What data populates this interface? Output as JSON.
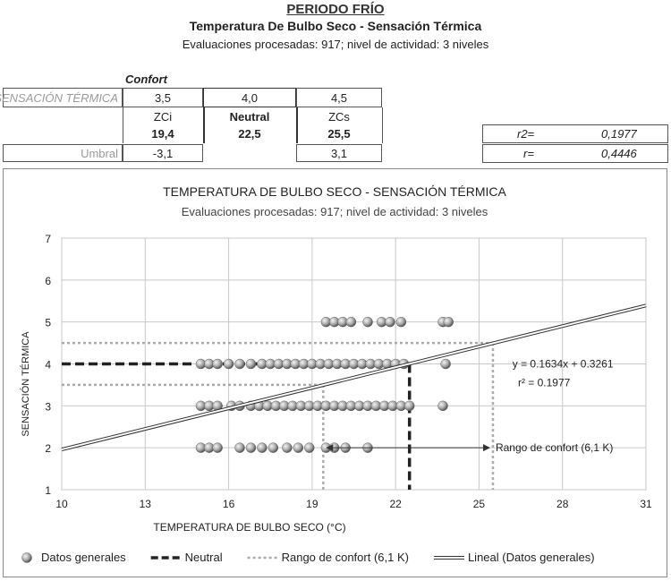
{
  "header": {
    "period": "PERIODO FRÍO",
    "title": "Temperatura De Bulbo Seco - Sensación Térmica",
    "subtitle": "Evaluaciones procesadas: 917; nivel de actividad: 3 niveles"
  },
  "summary": {
    "confort_label": "Confort",
    "sensacion_label": "SENSACIÓN TÉRMICA",
    "sensacion_values": [
      "3,5",
      "4,0",
      "4,5"
    ],
    "zone_labels": [
      "ZCi",
      "Neutral",
      "ZCs"
    ],
    "zone_temps": [
      "19,4",
      "22,5",
      "25,5"
    ],
    "umbral_label": "Umbral",
    "umbral_values": [
      "-3,1",
      "3,1"
    ],
    "r2_label": "r2=",
    "r2_value": "0,1977",
    "r_label": "r=",
    "r_value": "0,4446"
  },
  "chart_data": {
    "type": "scatter",
    "title": "TEMPERATURA DE BULBO SECO - SENSACIÓN TÉRMICA",
    "subtitle": "Evaluaciones procesadas: 917; nivel de actividad: 3 niveles",
    "xlabel": "TEMPERATURA DE BULBO SECO  (°C)",
    "ylabel": "SENSACIÓN TÉRMICA",
    "xlim": [
      10,
      31
    ],
    "ylim": [
      1,
      7
    ],
    "xticks": [
      10,
      13,
      16,
      19,
      22,
      25,
      28,
      31
    ],
    "yticks": [
      1,
      2,
      3,
      4,
      5,
      6,
      7
    ],
    "grid": true,
    "legend_position": "bottom",
    "series": [
      {
        "name": "Datos generales",
        "kind": "points",
        "points": [
          [
            15.0,
            2
          ],
          [
            15.3,
            2
          ],
          [
            15.6,
            2
          ],
          [
            16.4,
            2
          ],
          [
            16.8,
            2
          ],
          [
            17.2,
            2
          ],
          [
            17.6,
            2
          ],
          [
            18.1,
            2
          ],
          [
            18.5,
            2
          ],
          [
            18.9,
            2
          ],
          [
            19.5,
            2
          ],
          [
            19.8,
            2
          ],
          [
            20.2,
            2
          ],
          [
            21.0,
            2
          ],
          [
            15.0,
            3
          ],
          [
            15.3,
            3
          ],
          [
            15.6,
            3
          ],
          [
            16.1,
            3
          ],
          [
            16.4,
            3
          ],
          [
            16.8,
            3
          ],
          [
            17.1,
            3
          ],
          [
            17.4,
            3
          ],
          [
            17.7,
            3
          ],
          [
            18.0,
            3
          ],
          [
            18.3,
            3
          ],
          [
            18.6,
            3
          ],
          [
            18.9,
            3
          ],
          [
            19.2,
            3
          ],
          [
            19.5,
            3
          ],
          [
            19.8,
            3
          ],
          [
            20.1,
            3
          ],
          [
            20.4,
            3
          ],
          [
            20.7,
            3
          ],
          [
            21.0,
            3
          ],
          [
            21.3,
            3
          ],
          [
            21.6,
            3
          ],
          [
            21.9,
            3
          ],
          [
            22.2,
            3
          ],
          [
            22.5,
            3
          ],
          [
            23.7,
            3
          ],
          [
            15.0,
            4
          ],
          [
            15.3,
            4
          ],
          [
            15.6,
            4
          ],
          [
            16.0,
            4
          ],
          [
            16.4,
            4
          ],
          [
            16.8,
            4
          ],
          [
            17.2,
            4
          ],
          [
            17.5,
            4
          ],
          [
            17.8,
            4
          ],
          [
            18.1,
            4
          ],
          [
            18.4,
            4
          ],
          [
            18.7,
            4
          ],
          [
            19.0,
            4
          ],
          [
            19.3,
            4
          ],
          [
            19.6,
            4
          ],
          [
            19.9,
            4
          ],
          [
            20.2,
            4
          ],
          [
            20.5,
            4
          ],
          [
            20.8,
            4
          ],
          [
            21.1,
            4
          ],
          [
            21.4,
            4
          ],
          [
            21.7,
            4
          ],
          [
            22.0,
            4
          ],
          [
            22.3,
            4
          ],
          [
            23.8,
            4
          ],
          [
            19.5,
            5
          ],
          [
            19.8,
            5
          ],
          [
            20.1,
            5
          ],
          [
            20.4,
            5
          ],
          [
            21.0,
            5
          ],
          [
            21.5,
            5
          ],
          [
            21.8,
            5
          ],
          [
            22.2,
            5
          ],
          [
            23.7,
            5
          ],
          [
            23.9,
            5
          ]
        ]
      },
      {
        "name": "Neutral",
        "kind": "dashed",
        "segments": [
          [
            [
              10,
              4
            ],
            [
              22.5,
              4
            ]
          ],
          [
            [
              22.5,
              4
            ],
            [
              22.5,
              1
            ]
          ]
        ]
      },
      {
        "name": "Rango de confort (6,1 K)",
        "kind": "dotted",
        "segments": [
          [
            [
              10,
              4.5
            ],
            [
              25.5,
              4.5
            ]
          ],
          [
            [
              25.5,
              4.5
            ],
            [
              25.5,
              1
            ]
          ],
          [
            [
              10,
              3.5
            ],
            [
              19.4,
              3.5
            ]
          ],
          [
            [
              19.4,
              3.5
            ],
            [
              19.4,
              1
            ]
          ]
        ]
      },
      {
        "name": "Lineal (Datos generales)",
        "kind": "trend",
        "slope": 0.1634,
        "intercept": 0.3261
      }
    ],
    "annotations": {
      "equation": "y = 0.1634x + 0.3261",
      "r2_text": "r² = 0.1977",
      "equation_at": [
        26.2,
        4.0
      ],
      "r2_at": [
        26.4,
        3.55
      ],
      "range_label": "Rango de confort (6,1 K)",
      "range_arrow": [
        [
          19.4,
          2
        ],
        [
          25.5,
          2
        ]
      ],
      "range_label_at": [
        25.5,
        2
      ]
    }
  }
}
